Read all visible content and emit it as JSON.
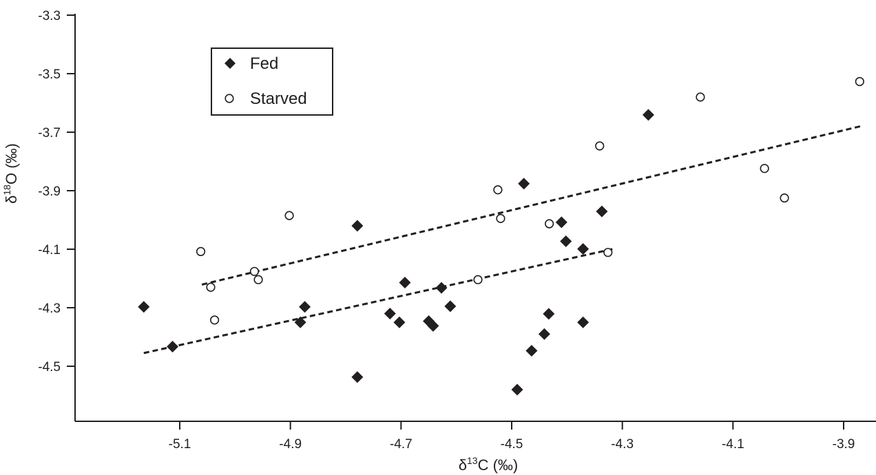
{
  "chart_data": {
    "type": "scatter",
    "xlabel": {
      "base": "δ",
      "sup": "13",
      "rest": "C (‰)"
    },
    "ylabel": {
      "base": "δ",
      "sup": "18",
      "rest": "O (‰)"
    },
    "xlim": [
      -5.27,
      -3.79
    ],
    "ylim": [
      -4.67,
      -3.3
    ],
    "x_ticks": [
      "-5.1",
      "-4.9",
      "-4.7",
      "-4.5",
      "-4.3",
      "-4.1",
      "-3.9"
    ],
    "y_ticks": [
      "-3.3",
      "-3.5",
      "-3.7",
      "-3.9",
      "-4.1",
      "-4.3",
      "-4.5"
    ],
    "legend_position": "top-left",
    "grid": false,
    "series": [
      {
        "name": "Fed",
        "marker": "filled-diamond",
        "color": "#231f20",
        "points": [
          [
            -5.165,
            -4.297
          ],
          [
            -5.113,
            -4.433
          ],
          [
            -4.874,
            -4.297
          ],
          [
            -4.882,
            -4.35
          ],
          [
            -4.779,
            -4.02
          ],
          [
            -4.779,
            -4.537
          ],
          [
            -4.72,
            -4.32
          ],
          [
            -4.703,
            -4.35
          ],
          [
            -4.693,
            -4.214
          ],
          [
            -4.65,
            -4.346
          ],
          [
            -4.642,
            -4.362
          ],
          [
            -4.627,
            -4.232
          ],
          [
            -4.611,
            -4.295
          ],
          [
            -4.478,
            -3.876
          ],
          [
            -4.49,
            -4.58
          ],
          [
            -4.464,
            -4.447
          ],
          [
            -4.441,
            -4.39
          ],
          [
            -4.433,
            -4.321
          ],
          [
            -4.41,
            -4.008
          ],
          [
            -4.402,
            -4.073
          ],
          [
            -4.371,
            -4.099
          ],
          [
            -4.371,
            -4.35
          ],
          [
            -4.337,
            -3.971
          ],
          [
            -4.253,
            -3.641
          ]
        ],
        "trendline": {
          "x": [
            -5.165,
            -4.314
          ],
          "y": [
            -4.455,
            -4.098
          ]
        }
      },
      {
        "name": "Starved",
        "marker": "open-circle",
        "color": "#231f20",
        "points": [
          [
            -5.062,
            -4.108
          ],
          [
            -5.044,
            -4.23
          ],
          [
            -5.037,
            -4.342
          ],
          [
            -4.965,
            -4.176
          ],
          [
            -4.958,
            -4.204
          ],
          [
            -4.902,
            -3.985
          ],
          [
            -4.561,
            -4.204
          ],
          [
            -4.525,
            -3.897
          ],
          [
            -4.52,
            -3.995
          ],
          [
            -4.432,
            -4.013
          ],
          [
            -4.341,
            -3.747
          ],
          [
            -4.326,
            -4.111
          ],
          [
            -4.159,
            -3.58
          ],
          [
            -4.043,
            -3.824
          ],
          [
            -4.007,
            -3.925
          ],
          [
            -3.871,
            -3.527
          ]
        ],
        "trendline": {
          "x": [
            -5.06,
            -3.87
          ],
          "y": [
            -4.221,
            -3.68
          ]
        }
      }
    ]
  }
}
